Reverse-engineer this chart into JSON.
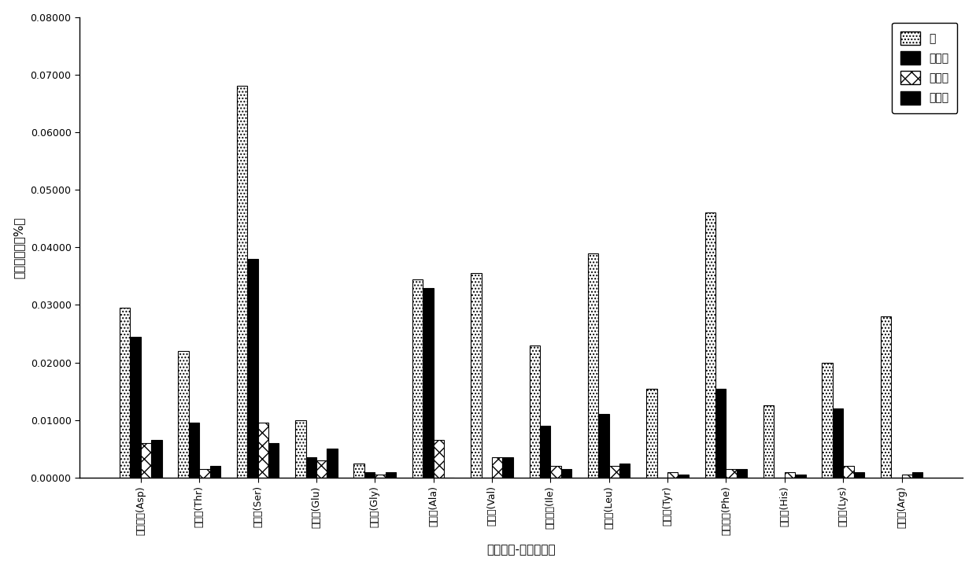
{
  "categories": [
    "天冬氨酸(Asp)",
    "苏氨酸(Thr)",
    "丝氨酸(Ser)",
    "谷氨酸(Glu)",
    "甘氨酸(Gly)",
    "丙氨酸(Ala)",
    "缬氨酸(Val)",
    "异亮氨酸(Ile)",
    "亮氨酸(Leu)",
    "络氨酸(Tyr)",
    "苯丙氨酸(Phe)",
    "组氨酸(His)",
    "赖氨酸(Lys)",
    "精氨酸(Arg)"
  ],
  "series": {
    "叶": [
      0.0295,
      0.022,
      0.068,
      0.01,
      0.0025,
      0.0345,
      0.0355,
      0.023,
      0.039,
      0.0155,
      0.046,
      0.0125,
      0.02,
      0.028
    ],
    "茎上部": [
      0.0245,
      0.0095,
      0.038,
      0.0035,
      0.001,
      0.033,
      0.0,
      0.009,
      0.011,
      0.0,
      0.0155,
      0.0,
      0.012,
      0.0
    ],
    "茎中部": [
      0.006,
      0.0015,
      0.0095,
      0.003,
      0.0005,
      0.0065,
      0.0035,
      0.002,
      0.002,
      0.001,
      0.0015,
      0.001,
      0.002,
      0.0005
    ],
    "茎下部": [
      0.0065,
      0.002,
      0.006,
      0.005,
      0.001,
      0.0,
      0.0035,
      0.0015,
      0.0025,
      0.0005,
      0.0015,
      0.0005,
      0.001,
      0.001
    ]
  },
  "ylabel": "氨基酸含量（%）",
  "xlabel": "细胞内液-游离氨基酸",
  "ylim": [
    0,
    0.08
  ],
  "yticks": [
    0.0,
    0.01,
    0.02,
    0.03,
    0.04,
    0.05,
    0.06,
    0.07,
    0.08
  ],
  "ytick_labels": [
    "0.00000",
    "0.01000",
    "0.02000",
    "0.03000",
    "0.04000",
    "0.05000",
    "0.06000",
    "0.07000",
    "0.08000"
  ],
  "legend_labels": [
    "叶",
    "茎上部",
    "茎中部",
    "茎下部"
  ],
  "bar_width": 0.18,
  "figsize": [
    12.4,
    7.23
  ],
  "dpi": 100
}
